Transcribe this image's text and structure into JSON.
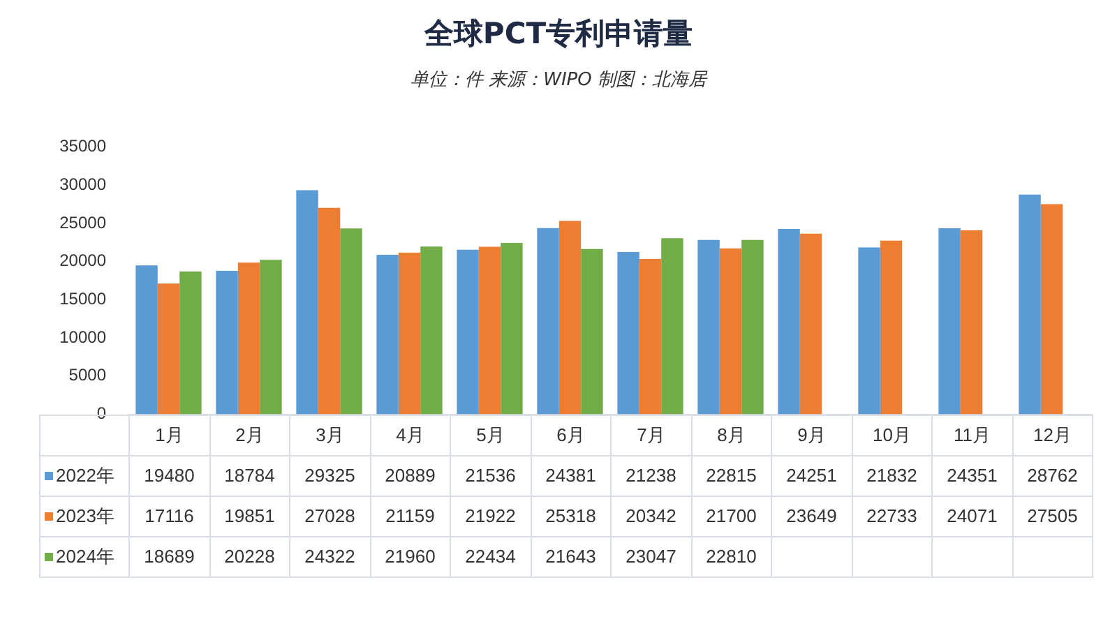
{
  "chart_data": {
    "type": "bar",
    "title": "全球PCT专利申请量",
    "subtitle": "单位：件 来源：WIPO 制图：北海居",
    "categories": [
      "1月",
      "2月",
      "3月",
      "4月",
      "5月",
      "6月",
      "7月",
      "8月",
      "9月",
      "10月",
      "11月",
      "12月"
    ],
    "series": [
      {
        "name": "2022年",
        "color": "#5b9bd5",
        "values": [
          19480,
          18784,
          29325,
          20889,
          21536,
          24381,
          21238,
          22815,
          24251,
          21832,
          24351,
          28762
        ]
      },
      {
        "name": "2023年",
        "color": "#ed7d31",
        "values": [
          17116,
          19851,
          27028,
          21159,
          21922,
          25318,
          20342,
          21700,
          23649,
          22733,
          24071,
          27505
        ]
      },
      {
        "name": "2024年",
        "color": "#70ad47",
        "values": [
          18689,
          20228,
          24322,
          21960,
          22434,
          21643,
          23047,
          22810,
          null,
          null,
          null,
          null
        ]
      }
    ],
    "ylim": [
      0,
      35000
    ],
    "yticks": [
      0,
      5000,
      10000,
      15000,
      20000,
      25000,
      30000,
      35000
    ],
    "grid": false,
    "legend": "bottom left",
    "data_labels": true
  }
}
